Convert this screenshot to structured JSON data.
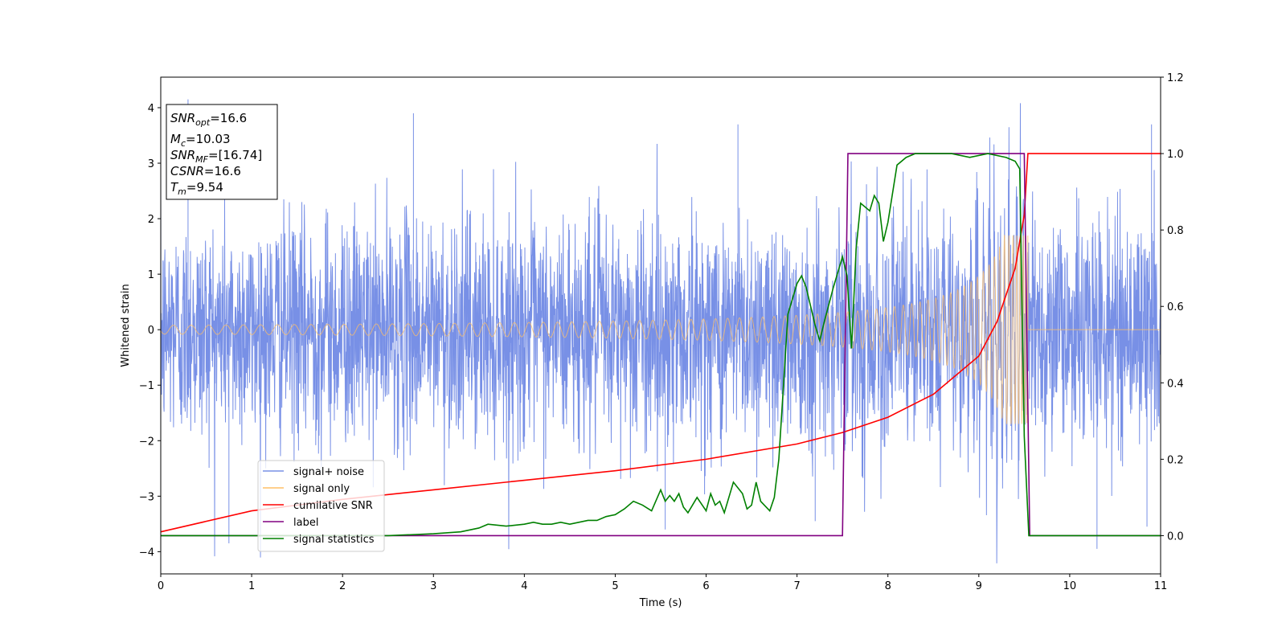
{
  "chart_data": {
    "type": "line",
    "xlabel": "Time (s)",
    "ylabel": "Whitened strain",
    "xlim": [
      0,
      11
    ],
    "ylim_left": [
      -4.4,
      4.55
    ],
    "ylim_right": [
      -0.1,
      1.2
    ],
    "x_ticks": [
      0,
      1,
      2,
      3,
      4,
      5,
      6,
      7,
      8,
      9,
      10,
      11
    ],
    "y_left_ticks": [
      -4,
      -3,
      -2,
      -1,
      0,
      1,
      2,
      3,
      4
    ],
    "y_right_ticks": [
      "0.0",
      "0.2",
      "0.4",
      "0.6",
      "0.8",
      "1.0",
      "1.2"
    ],
    "info_box": {
      "snr_opt_label": "SNR",
      "snr_opt_sub": "opt",
      "snr_opt_value": "=16.6",
      "mc_label": "M",
      "mc_sub": "c",
      "mc_value": "=10.03",
      "snr_mf_label": "SNR",
      "snr_mf_sub": "MF",
      "snr_mf_value": "=[16.74]",
      "csnr_label": "CSNR",
      "csnr_value": "=16.6",
      "tm_label": "T",
      "tm_sub": "m",
      "tm_value": "=9.54"
    },
    "legend": [
      {
        "name": "signal+ noise",
        "color": "#7890e6"
      },
      {
        "name": "signal only",
        "color": "#ffbf66"
      },
      {
        "name": "cumilative SNR",
        "color": "#ff0000"
      },
      {
        "name": "label",
        "color": "#800080"
      },
      {
        "name": "signal statistics",
        "color": "#008000"
      }
    ],
    "legend_position": "lower-left",
    "series": [
      {
        "name": "signal+ noise",
        "axis": "left",
        "noise_std": 1.0,
        "noise_extremes": [
          [
            0.3,
            4.15
          ],
          [
            0.75,
            -3.85
          ],
          [
            2.78,
            3.9
          ],
          [
            6.35,
            3.7
          ],
          [
            10.3,
            -3.95
          ],
          [
            10.9,
            3.7
          ],
          [
            10.85,
            -3.55
          ],
          [
            5.55,
            -3.6
          ],
          [
            7.2,
            -3.45
          ]
        ]
      },
      {
        "name": "signal only",
        "axis": "left",
        "t_merger": 9.54,
        "amplitude_start": 0.08,
        "amplitude_peak": 1.7
      },
      {
        "name": "cumilative SNR",
        "axis": "right",
        "x": [
          0,
          1,
          2,
          3,
          4,
          5,
          6,
          7,
          7.5,
          8,
          8.5,
          9,
          9.2,
          9.4,
          9.5,
          9.54,
          9.55,
          11
        ],
        "y": [
          0.01,
          0.065,
          0.095,
          0.12,
          0.145,
          0.17,
          0.2,
          0.24,
          0.27,
          0.31,
          0.37,
          0.47,
          0.56,
          0.7,
          0.84,
          1.0,
          1.0,
          1.0
        ]
      },
      {
        "name": "label",
        "axis": "right",
        "x": [
          0,
          7.5,
          7.56,
          9.5,
          9.56,
          11
        ],
        "y": [
          0,
          0,
          1,
          1,
          0,
          0
        ]
      },
      {
        "name": "signal statistics",
        "axis": "right",
        "x": [
          0,
          2.5,
          3.0,
          3.3,
          3.5,
          3.6,
          3.8,
          4.0,
          4.1,
          4.2,
          4.3,
          4.4,
          4.5,
          4.6,
          4.7,
          4.8,
          4.9,
          5.0,
          5.1,
          5.2,
          5.3,
          5.4,
          5.5,
          5.55,
          5.6,
          5.65,
          5.7,
          5.75,
          5.8,
          5.9,
          6.0,
          6.05,
          6.1,
          6.15,
          6.2,
          6.3,
          6.4,
          6.45,
          6.5,
          6.55,
          6.6,
          6.7,
          6.75,
          6.8,
          6.9,
          6.95,
          7.0,
          7.05,
          7.1,
          7.15,
          7.2,
          7.25,
          7.3,
          7.4,
          7.5,
          7.55,
          7.6,
          7.65,
          7.7,
          7.8,
          7.85,
          7.9,
          7.95,
          8.0,
          8.1,
          8.2,
          8.3,
          8.5,
          8.7,
          8.9,
          9.1,
          9.3,
          9.4,
          9.45,
          9.5,
          9.55,
          9.6,
          11
        ],
        "y": [
          0,
          0.0,
          0.005,
          0.01,
          0.02,
          0.03,
          0.025,
          0.03,
          0.035,
          0.03,
          0.03,
          0.035,
          0.03,
          0.035,
          0.04,
          0.04,
          0.05,
          0.055,
          0.07,
          0.09,
          0.08,
          0.065,
          0.12,
          0.09,
          0.105,
          0.09,
          0.11,
          0.075,
          0.06,
          0.1,
          0.065,
          0.11,
          0.08,
          0.09,
          0.06,
          0.14,
          0.11,
          0.07,
          0.08,
          0.14,
          0.09,
          0.065,
          0.1,
          0.2,
          0.58,
          0.62,
          0.66,
          0.68,
          0.65,
          0.6,
          0.55,
          0.51,
          0.56,
          0.65,
          0.73,
          0.68,
          0.49,
          0.75,
          0.87,
          0.85,
          0.89,
          0.87,
          0.77,
          0.82,
          0.97,
          0.99,
          1.0,
          1.0,
          1.0,
          0.99,
          1.0,
          0.99,
          0.98,
          0.96,
          0.26,
          0.0,
          0.0,
          0.0
        ]
      }
    ]
  }
}
